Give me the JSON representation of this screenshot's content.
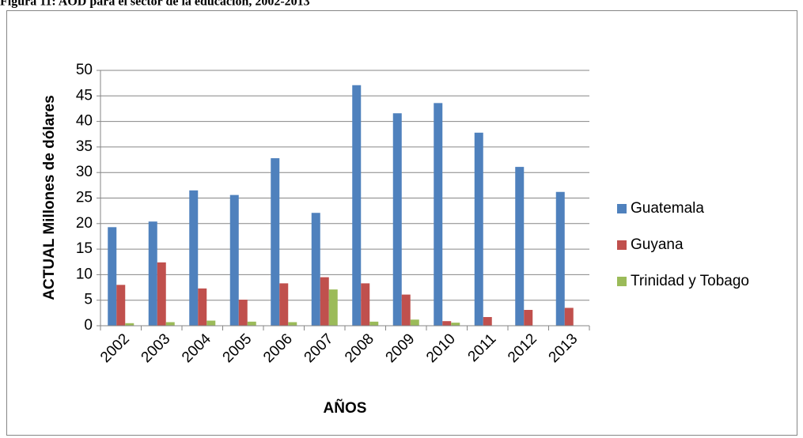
{
  "chart_data": {
    "type": "bar",
    "title": "Figura 11: AOD para el sector de la educación, 2002-2013",
    "ylabel": "ACTUAL Millones de dólares",
    "xlabel": "AÑOS",
    "categories": [
      "2002",
      "2003",
      "2004",
      "2005",
      "2006",
      "2007",
      "2008",
      "2009",
      "2010",
      "2011",
      "2012",
      "2013"
    ],
    "series": [
      {
        "name": "Guatemala",
        "color": "#4f81bd",
        "values": [
          19.3,
          20.4,
          26.5,
          25.6,
          32.8,
          22.1,
          47.1,
          41.6,
          43.6,
          37.8,
          31.1,
          26.2
        ]
      },
      {
        "name": "Guyana",
        "color": "#c0504d",
        "values": [
          8.0,
          12.4,
          7.3,
          5.1,
          8.3,
          9.5,
          8.3,
          6.1,
          0.9,
          1.7,
          3.1,
          3.5
        ]
      },
      {
        "name": "Trinidad y Tobago",
        "color": "#9bbb59",
        "values": [
          0.5,
          0.7,
          1.0,
          0.8,
          0.7,
          7.1,
          0.8,
          1.2,
          0.6,
          0,
          0,
          0
        ]
      }
    ],
    "ylim": [
      0,
      50
    ],
    "yticks": [
      0,
      5,
      10,
      15,
      20,
      25,
      30,
      35,
      40,
      45,
      50
    ],
    "grid": true,
    "legend": "right"
  }
}
